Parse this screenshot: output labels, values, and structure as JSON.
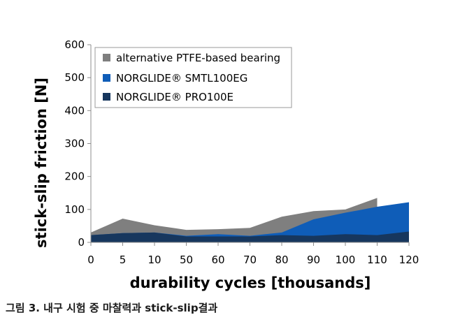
{
  "chart_data": {
    "type": "area",
    "title": "",
    "xlabel": "durability cycles [thousands]",
    "ylabel": "stick-slip friction  [N]",
    "categories": [
      "0",
      "5",
      "10",
      "50",
      "60",
      "70",
      "80",
      "90",
      "100",
      "110",
      "120"
    ],
    "ylim": [
      0,
      600
    ],
    "yticks": [
      0,
      100,
      200,
      300,
      400,
      500,
      600
    ],
    "grid": false,
    "legend_position": "top-left",
    "series": [
      {
        "name": "alternative PTFE-based bearing",
        "color": "#7f7f7f",
        "values": [
          30,
          72,
          52,
          38,
          40,
          44,
          78,
          95,
          100,
          135,
          null
        ]
      },
      {
        "name": "NORGLIDE® SMTL100EG",
        "color": "#0f5db8",
        "values": [
          22,
          28,
          30,
          20,
          25,
          20,
          30,
          70,
          90,
          108,
          122
        ]
      },
      {
        "name": "NORGLIDE® PRO100E",
        "color": "#17375e",
        "values": [
          22,
          28,
          30,
          18,
          18,
          18,
          22,
          20,
          25,
          22,
          33
        ]
      }
    ]
  },
  "caption": "그림 3. 내구 시험 중 마찰력과 stick-slip결과"
}
